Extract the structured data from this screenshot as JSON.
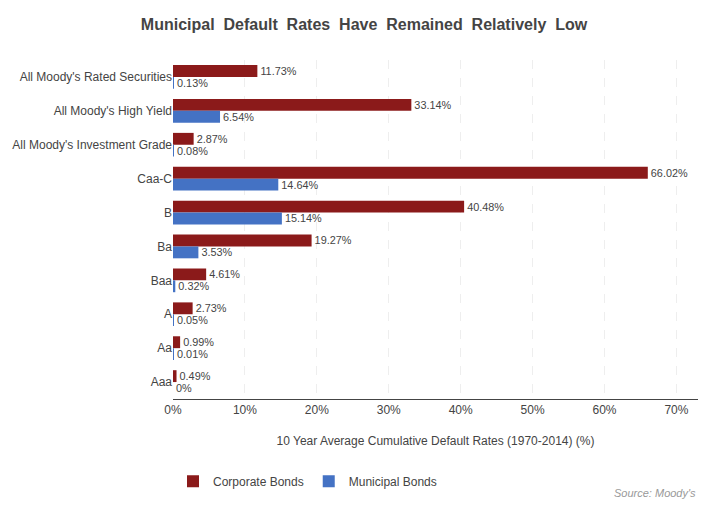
{
  "chart_data": {
    "type": "bar",
    "orientation": "horizontal",
    "title": "Municipal  Default  Rates  Have  Remained  Relatively  Low",
    "categories": [
      "All Moody's Rated Securities",
      "All Moody's High Yield",
      "All Moody's Investment Grade",
      "Caa-C",
      "B",
      "Ba",
      "Baa",
      "A",
      "Aa",
      "Aaa"
    ],
    "series": [
      {
        "name": "Corporate Bonds",
        "color": "#8B1A1A",
        "values": [
          11.73,
          33.14,
          2.87,
          66.02,
          40.48,
          19.27,
          4.61,
          2.73,
          0.99,
          0.49
        ],
        "value_labels": [
          "11.73%",
          "33.14%",
          "2.87%",
          "66.02%",
          "40.48%",
          "19.27%",
          "4.61%",
          "2.73%",
          "0.99%",
          "0.49%"
        ]
      },
      {
        "name": "Municipal Bonds",
        "color": "#4472C4",
        "values": [
          0.13,
          6.54,
          0.08,
          14.64,
          15.14,
          3.53,
          0.32,
          0.05,
          0.01,
          0.0
        ],
        "value_labels": [
          "0.13%",
          "6.54%",
          "0.08%",
          "14.64%",
          "15.14%",
          "3.53%",
          "0.32%",
          "0.05%",
          "0.01%",
          "0%"
        ]
      }
    ],
    "xlabel": "10 Year Average Cumulative Default Rates (1970-2014) (%)",
    "xlim": [
      0,
      73
    ],
    "xticks": [
      {
        "value": 0,
        "label": "0%"
      },
      {
        "value": 10,
        "label": "10%"
      },
      {
        "value": 20,
        "label": "20%"
      },
      {
        "value": 30,
        "label": "30%"
      },
      {
        "value": 40,
        "label": "40%"
      },
      {
        "value": 50,
        "label": "50%"
      },
      {
        "value": 60,
        "label": "60%"
      },
      {
        "value": 70,
        "label": "70%"
      }
    ],
    "grid": true,
    "legend": "bottom left",
    "data_labels": true,
    "annotations": [
      "Source: Moody's"
    ]
  }
}
